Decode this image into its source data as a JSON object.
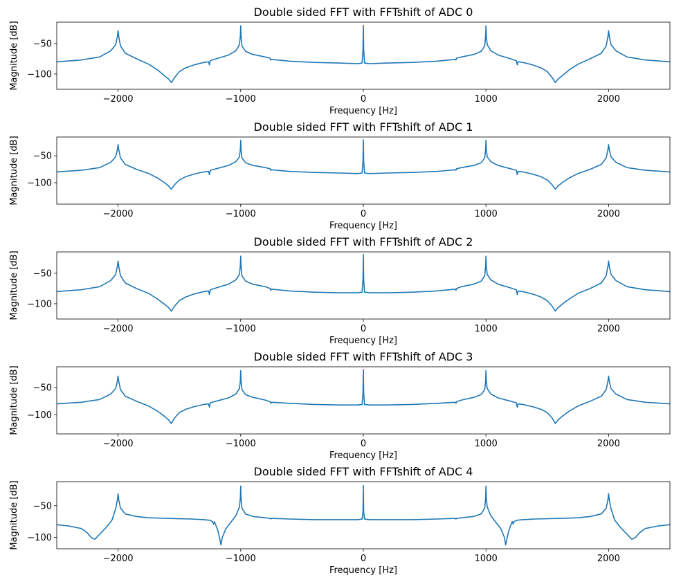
{
  "chart_data": [
    {
      "type": "line",
      "title": "Double sided FFT with FFTshift of ADC 0",
      "xlabel": "Frequency [Hz]",
      "ylabel": "Magnitude [dB]",
      "xlim": [
        -2500,
        2500
      ],
      "ylim": [
        -125,
        -15
      ],
      "xticks": [
        -2000,
        -1000,
        0,
        1000,
        2000
      ],
      "yticks": [
        -50,
        -100
      ],
      "color": "#1f77b4",
      "series": [
        {
          "x": [
            -2500,
            -2300,
            -2150,
            -2060,
            -2020,
            -2005,
            -2000,
            -1995,
            -1980,
            -1940,
            -1850,
            -1750,
            -1680,
            -1620,
            -1590,
            -1565,
            -1540,
            -1500,
            -1450,
            -1380,
            -1300,
            -1262,
            -1255,
            -1248,
            -1200,
            -1100,
            -1040,
            -1010,
            -1003,
            -1000,
            -997,
            -990,
            -960,
            -900,
            -800,
            -760,
            -755,
            -750,
            -600,
            -400,
            -200,
            -50,
            -10,
            -3,
            0,
            3,
            10,
            50,
            200,
            400,
            600,
            750,
            755,
            760,
            800,
            900,
            960,
            990,
            997,
            1000,
            1003,
            1010,
            1040,
            1100,
            1200,
            1248,
            1255,
            1262,
            1300,
            1380,
            1450,
            1500,
            1540,
            1565,
            1590,
            1620,
            1680,
            1750,
            1850,
            1940,
            1980,
            1995,
            2000,
            2005,
            2020,
            2060,
            2150,
            2300,
            2500
          ],
          "y": [
            -80,
            -77,
            -72,
            -62,
            -52,
            -38,
            -29,
            -38,
            -54,
            -66,
            -75,
            -84,
            -93,
            -103,
            -108,
            -114,
            -106,
            -96,
            -90,
            -85,
            -81,
            -80,
            -85,
            -78,
            -75,
            -69,
            -62,
            -52,
            -38,
            -21,
            -38,
            -54,
            -63,
            -68,
            -72,
            -74,
            -77,
            -76,
            -79,
            -81,
            -82,
            -83,
            -82,
            -60,
            -20,
            -60,
            -82,
            -83,
            -82,
            -81,
            -79,
            -76,
            -77,
            -74,
            -72,
            -68,
            -63,
            -54,
            -38,
            -21,
            -38,
            -52,
            -62,
            -69,
            -75,
            -78,
            -85,
            -80,
            -81,
            -85,
            -90,
            -96,
            -106,
            -114,
            -108,
            -103,
            -93,
            -84,
            -75,
            -66,
            -54,
            -38,
            -29,
            -38,
            -52,
            -62,
            -72,
            -77,
            -80
          ]
        }
      ]
    },
    {
      "type": "line",
      "title": "Double sided FFT with FFTshift of ADC 1",
      "xlabel": "Frequency [Hz]",
      "ylabel": "Magnitude [dB]",
      "xlim": [
        -2500,
        2500
      ],
      "ylim": [
        -140,
        -15
      ],
      "xticks": [
        -2000,
        -1000,
        0,
        1000,
        2000
      ],
      "yticks": [
        -50,
        -100
      ],
      "color": "#1f77b4",
      "series": [
        {
          "x": [
            -2500,
            -2300,
            -2150,
            -2060,
            -2020,
            -2005,
            -2000,
            -1995,
            -1980,
            -1940,
            -1850,
            -1750,
            -1680,
            -1620,
            -1590,
            -1565,
            -1540,
            -1500,
            -1450,
            -1380,
            -1300,
            -1262,
            -1255,
            -1248,
            -1200,
            -1100,
            -1040,
            -1010,
            -1003,
            -1000,
            -997,
            -990,
            -960,
            -900,
            -800,
            -760,
            -755,
            -750,
            -600,
            -400,
            -200,
            -50,
            -10,
            -3,
            0,
            3,
            10,
            50,
            200,
            400,
            600,
            750,
            755,
            760,
            800,
            900,
            960,
            990,
            997,
            1000,
            1003,
            1010,
            1040,
            1100,
            1200,
            1248,
            1255,
            1262,
            1300,
            1380,
            1450,
            1500,
            1540,
            1565,
            1590,
            1620,
            1680,
            1750,
            1850,
            1940,
            1980,
            1995,
            2000,
            2005,
            2020,
            2060,
            2150,
            2300,
            2500
          ],
          "y": [
            -80,
            -77,
            -72,
            -62,
            -52,
            -38,
            -29,
            -38,
            -54,
            -66,
            -75,
            -83,
            -91,
            -100,
            -106,
            -112,
            -104,
            -95,
            -89,
            -84,
            -80,
            -79,
            -85,
            -77,
            -74,
            -68,
            -61,
            -52,
            -38,
            -21,
            -38,
            -54,
            -63,
            -68,
            -72,
            -74,
            -77,
            -76,
            -79,
            -81,
            -82,
            -83,
            -82,
            -60,
            -20,
            -60,
            -82,
            -83,
            -82,
            -81,
            -79,
            -76,
            -77,
            -74,
            -72,
            -68,
            -63,
            -54,
            -38,
            -21,
            -38,
            -52,
            -61,
            -68,
            -74,
            -77,
            -85,
            -79,
            -80,
            -84,
            -89,
            -95,
            -104,
            -112,
            -106,
            -100,
            -91,
            -83,
            -75,
            -66,
            -54,
            -38,
            -29,
            -38,
            -52,
            -62,
            -72,
            -77,
            -80
          ]
        }
      ]
    },
    {
      "type": "line",
      "title": "Double sided FFT with FFTshift of ADC 2",
      "xlabel": "Frequency [Hz]",
      "ylabel": "Magnitude [dB]",
      "xlim": [
        -2500,
        2500
      ],
      "ylim": [
        -125,
        -15
      ],
      "xticks": [
        -2000,
        -1000,
        0,
        1000,
        2000
      ],
      "yticks": [
        -50,
        -100
      ],
      "color": "#1f77b4",
      "series": [
        {
          "x": [
            -2500,
            -2300,
            -2150,
            -2060,
            -2020,
            -2005,
            -2000,
            -1995,
            -1980,
            -1940,
            -1850,
            -1750,
            -1680,
            -1620,
            -1590,
            -1565,
            -1540,
            -1500,
            -1450,
            -1380,
            -1300,
            -1262,
            -1255,
            -1248,
            -1200,
            -1100,
            -1040,
            -1010,
            -1003,
            -1000,
            -997,
            -990,
            -960,
            -900,
            -800,
            -760,
            -755,
            -750,
            -600,
            -400,
            -200,
            -50,
            -10,
            -3,
            0,
            3,
            10,
            50,
            200,
            400,
            600,
            750,
            755,
            760,
            800,
            900,
            960,
            990,
            997,
            1000,
            1003,
            1010,
            1040,
            1100,
            1200,
            1248,
            1255,
            1262,
            1300,
            1380,
            1450,
            1500,
            1540,
            1565,
            1590,
            1620,
            1680,
            1750,
            1850,
            1940,
            1980,
            1995,
            2000,
            2005,
            2020,
            2060,
            2150,
            2300,
            2500
          ],
          "y": [
            -80,
            -77,
            -72,
            -62,
            -52,
            -38,
            -30,
            -38,
            -54,
            -66,
            -75,
            -83,
            -92,
            -101,
            -106,
            -112,
            -104,
            -95,
            -89,
            -84,
            -80,
            -79,
            -85,
            -77,
            -74,
            -68,
            -61,
            -52,
            -38,
            -22,
            -38,
            -54,
            -63,
            -68,
            -72,
            -75,
            -78,
            -76,
            -79,
            -81,
            -82,
            -82,
            -81,
            -60,
            -19,
            -60,
            -81,
            -82,
            -82,
            -81,
            -79,
            -76,
            -78,
            -75,
            -72,
            -68,
            -63,
            -54,
            -38,
            -22,
            -38,
            -52,
            -61,
            -68,
            -74,
            -77,
            -85,
            -79,
            -80,
            -84,
            -89,
            -95,
            -104,
            -112,
            -106,
            -101,
            -92,
            -83,
            -75,
            -66,
            -54,
            -38,
            -30,
            -38,
            -52,
            -62,
            -72,
            -77,
            -80
          ]
        }
      ]
    },
    {
      "type": "line",
      "title": "Double sided FFT with FFTshift of ADC 3",
      "xlabel": "Frequency [Hz]",
      "ylabel": "Magnitude [dB]",
      "xlim": [
        -2500,
        2500
      ],
      "ylim": [
        -135,
        -12
      ],
      "xticks": [
        -2000,
        -1000,
        0,
        1000,
        2000
      ],
      "yticks": [
        -50,
        -100
      ],
      "color": "#1f77b4",
      "series": [
        {
          "x": [
            -2500,
            -2300,
            -2150,
            -2060,
            -2020,
            -2005,
            -2000,
            -1995,
            -1980,
            -1940,
            -1850,
            -1750,
            -1680,
            -1620,
            -1590,
            -1565,
            -1540,
            -1500,
            -1450,
            -1380,
            -1300,
            -1262,
            -1255,
            -1248,
            -1200,
            -1100,
            -1040,
            -1010,
            -1003,
            -1000,
            -997,
            -990,
            -960,
            -900,
            -800,
            -760,
            -755,
            -750,
            -600,
            -400,
            -200,
            -50,
            -10,
            -3,
            0,
            3,
            10,
            50,
            200,
            400,
            600,
            750,
            755,
            760,
            800,
            900,
            960,
            990,
            997,
            1000,
            1003,
            1010,
            1040,
            1100,
            1200,
            1248,
            1255,
            1262,
            1300,
            1380,
            1450,
            1500,
            1540,
            1565,
            1590,
            1620,
            1680,
            1750,
            1850,
            1940,
            1980,
            1995,
            2000,
            2005,
            2020,
            2060,
            2150,
            2300,
            2500
          ],
          "y": [
            -80,
            -77,
            -72,
            -62,
            -52,
            -38,
            -29,
            -38,
            -54,
            -66,
            -75,
            -84,
            -93,
            -103,
            -109,
            -116,
            -106,
            -96,
            -90,
            -85,
            -81,
            -80,
            -86,
            -78,
            -75,
            -69,
            -62,
            -52,
            -38,
            -19,
            -38,
            -54,
            -63,
            -68,
            -73,
            -76,
            -79,
            -77,
            -79,
            -81,
            -82,
            -82,
            -81,
            -60,
            -17,
            -60,
            -81,
            -82,
            -82,
            -81,
            -79,
            -77,
            -79,
            -76,
            -73,
            -68,
            -63,
            -54,
            -38,
            -19,
            -38,
            -52,
            -62,
            -69,
            -75,
            -78,
            -86,
            -80,
            -81,
            -85,
            -90,
            -96,
            -106,
            -116,
            -109,
            -103,
            -93,
            -84,
            -75,
            -66,
            -54,
            -38,
            -29,
            -38,
            -52,
            -62,
            -72,
            -77,
            -80
          ]
        }
      ]
    },
    {
      "type": "line",
      "title": "Double sided FFT with FFTshift of ADC 4",
      "xlabel": "Frequency [Hz]",
      "ylabel": "Magnitude [dB]",
      "xlim": [
        -2500,
        2500
      ],
      "ylim": [
        -118,
        -12
      ],
      "xticks": [
        -2000,
        -1000,
        0,
        1000,
        2000
      ],
      "yticks": [
        -50,
        -100
      ],
      "color": "#1f77b4",
      "series": [
        {
          "x": [
            -2500,
            -2400,
            -2300,
            -2250,
            -2220,
            -2190,
            -2150,
            -2100,
            -2050,
            -2020,
            -2005,
            -2000,
            -1995,
            -1980,
            -1940,
            -1850,
            -1750,
            -1600,
            -1400,
            -1300,
            -1250,
            -1230,
            -1222,
            -1215,
            -1200,
            -1185,
            -1170,
            -1160,
            -1150,
            -1120,
            -1080,
            -1040,
            -1010,
            -1003,
            -1000,
            -997,
            -990,
            -960,
            -900,
            -800,
            -760,
            -755,
            -750,
            -600,
            -400,
            -200,
            -50,
            -10,
            -3,
            0,
            3,
            10,
            50,
            200,
            400,
            600,
            750,
            755,
            760,
            800,
            900,
            960,
            990,
            997,
            1000,
            1003,
            1010,
            1040,
            1080,
            1120,
            1150,
            1160,
            1170,
            1185,
            1200,
            1215,
            1222,
            1230,
            1250,
            1300,
            1400,
            1600,
            1750,
            1850,
            1940,
            1980,
            1995,
            2000,
            2005,
            2020,
            2050,
            2100,
            2150,
            2190,
            2220,
            2250,
            2300,
            2400,
            2500
          ],
          "y": [
            -80,
            -82,
            -86,
            -93,
            -100,
            -103,
            -95,
            -85,
            -73,
            -55,
            -40,
            -31,
            -40,
            -54,
            -63,
            -67,
            -69,
            -70,
            -71,
            -72,
            -73,
            -75,
            -79,
            -75,
            -82,
            -90,
            -103,
            -112,
            -100,
            -86,
            -76,
            -66,
            -52,
            -38,
            -19,
            -38,
            -54,
            -63,
            -67,
            -69,
            -70,
            -71,
            -70,
            -71,
            -72,
            -72,
            -72,
            -71,
            -60,
            -18,
            -60,
            -71,
            -72,
            -72,
            -72,
            -71,
            -70,
            -71,
            -70,
            -69,
            -67,
            -63,
            -54,
            -38,
            -19,
            -38,
            -52,
            -66,
            -76,
            -86,
            -100,
            -112,
            -103,
            -90,
            -82,
            -75,
            -79,
            -75,
            -73,
            -72,
            -71,
            -70,
            -69,
            -67,
            -63,
            -54,
            -40,
            -31,
            -40,
            -55,
            -73,
            -85,
            -95,
            -103,
            -100,
            -93,
            -86,
            -82,
            -80
          ]
        }
      ]
    }
  ]
}
